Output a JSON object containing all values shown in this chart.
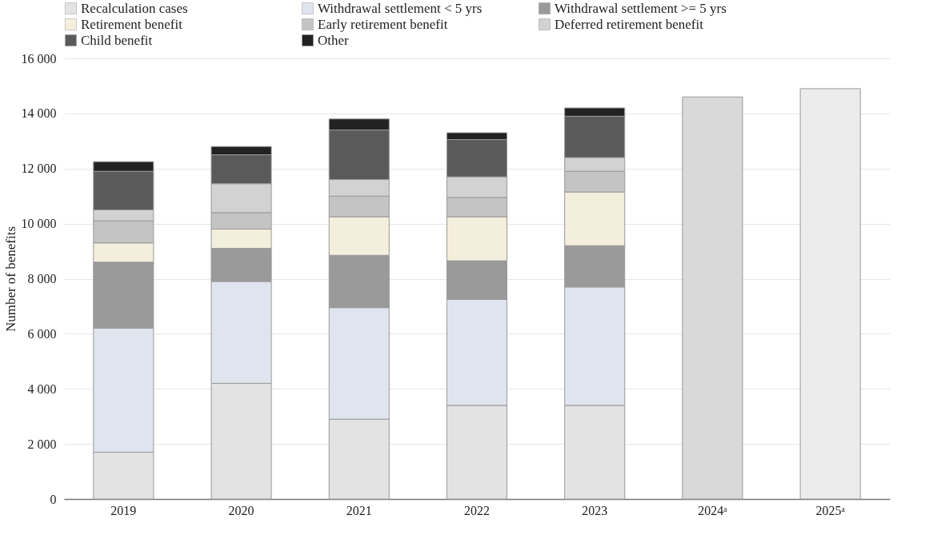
{
  "chart_data": {
    "type": "bar",
    "stacked": true,
    "ylabel": "Number of benefits",
    "categories": [
      "2019",
      "2020",
      "2021",
      "2022",
      "2023",
      "2024ᵃ",
      "2025ᵃ"
    ],
    "series": [
      {
        "name": "Recalculation cases",
        "color": "#e3e3e3",
        "values": [
          1700,
          4200,
          2900,
          3400,
          3400,
          null,
          null
        ]
      },
      {
        "name": "Withdrawal settlement < 5 yrs",
        "color": "#dfe4ee",
        "values": [
          4500,
          3700,
          4050,
          3850,
          4300,
          null,
          null
        ]
      },
      {
        "name": "Withdrawal settlement >= 5 yrs",
        "color": "#9a9a9a",
        "values": [
          2400,
          1200,
          1900,
          1400,
          1500,
          null,
          null
        ]
      },
      {
        "name": "Retirement benefit",
        "color": "#f4eedc",
        "values": [
          700,
          700,
          1400,
          1600,
          1950,
          null,
          null
        ]
      },
      {
        "name": "Early retirement benefit",
        "color": "#c4c4c4",
        "values": [
          800,
          600,
          750,
          700,
          750,
          null,
          null
        ]
      },
      {
        "name": "Deferred retirement benefit",
        "color": "#d2d2d2",
        "values": [
          400,
          1050,
          600,
          750,
          500,
          null,
          null
        ]
      },
      {
        "name": "Child benefit",
        "color": "#5a5a5a",
        "values": [
          1400,
          1050,
          1800,
          1350,
          1500,
          null,
          null
        ]
      },
      {
        "name": "Other",
        "color": "#222222",
        "values": [
          350,
          300,
          400,
          250,
          300,
          null,
          null
        ]
      },
      {
        "colors": [
          null,
          null,
          null,
          null,
          null,
          "#d9d9d9",
          "#ececec"
        ],
        "values": [
          null,
          null,
          null,
          null,
          null,
          14600,
          14900
        ]
      }
    ],
    "ylim": [
      0,
      16000
    ],
    "yticks": [
      0,
      {
        "value": 2000,
        "label": "2 000"
      },
      {
        "value": 4000,
        "label": "4 000"
      },
      {
        "value": 6000,
        "label": "6 000"
      },
      {
        "value": 8000,
        "label": "8 000"
      },
      {
        "value": 10000,
        "label": "10 000"
      },
      {
        "value": 12000,
        "label": "12 000"
      },
      {
        "value": 14000,
        "label": "14 000"
      },
      {
        "value": 16000,
        "label": "16 000"
      }
    ],
    "grid": "y",
    "legend": "top"
  }
}
